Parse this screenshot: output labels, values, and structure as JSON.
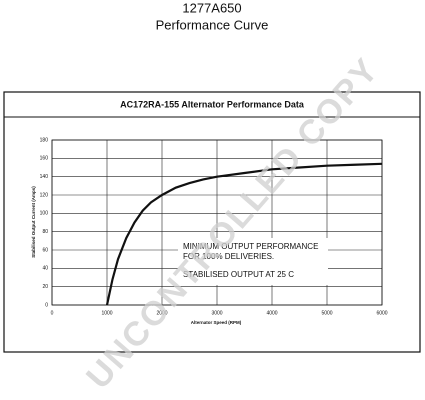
{
  "chart_data": {
    "type": "line",
    "part_number": "1277A650",
    "title": "Performance Curve",
    "subtitle": "AC172RA-155 Alternator Performance Data",
    "x_label": "Alternator Speed (RPM)",
    "y_label": "Stabilised Output Current (Amps)",
    "x": [
      1000,
      1100,
      1200,
      1350,
      1500,
      1650,
      1800,
      2000,
      2250,
      2500,
      2750,
      3000,
      3500,
      4000,
      4500,
      5000,
      5500,
      6000
    ],
    "series": [
      {
        "color": "#111111",
        "values": [
          0,
          28,
          50,
          73,
          90,
          103,
          112,
          120,
          128,
          133,
          137,
          140,
          144,
          148,
          150,
          152,
          153,
          154
        ]
      }
    ],
    "xlim": [
      0,
      6000
    ],
    "xticks": [
      0,
      1000,
      2000,
      3000,
      4000,
      5000,
      6000
    ],
    "ylim": [
      0,
      180
    ],
    "yticks": [
      0,
      20,
      40,
      60,
      80,
      100,
      120,
      140,
      160,
      180
    ],
    "grid": true,
    "annotations": [
      "MINIMUM OUTPUT PERFORMANCE",
      "FOR 100% DELIVERIES.",
      "STABILISED OUTPUT AT 25 C"
    ],
    "watermark": "UNCONTROLLED COPY"
  }
}
